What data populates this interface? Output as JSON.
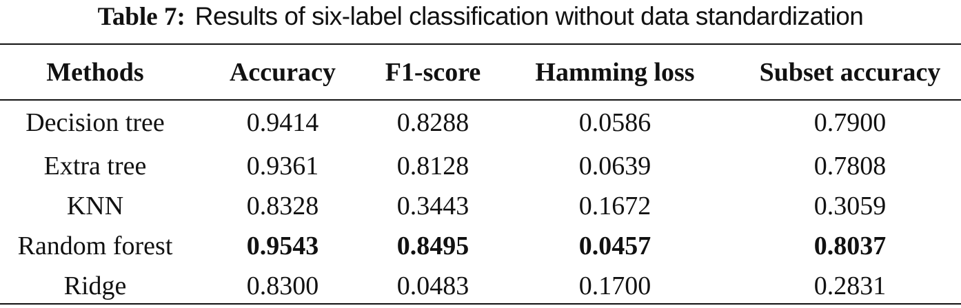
{
  "caption": {
    "label": "Table 7:",
    "text": "Results of six-label classification without data standardization"
  },
  "table": {
    "headers": [
      "Methods",
      "Accuracy",
      "F1-score",
      "Hamming loss",
      "Subset accuracy"
    ],
    "rows": [
      {
        "method": "Decision tree",
        "accuracy": "0.9414",
        "f1": "0.8288",
        "hamming": "0.0586",
        "subset": "0.7900",
        "best": false
      },
      {
        "method": "Extra tree",
        "accuracy": "0.9361",
        "f1": "0.8128",
        "hamming": "0.0639",
        "subset": "0.7808",
        "best": false
      },
      {
        "method": "KNN",
        "accuracy": "0.8328",
        "f1": "0.3443",
        "hamming": "0.1672",
        "subset": "0.3059",
        "best": false
      },
      {
        "method": "Random forest",
        "accuracy": "0.9543",
        "f1": "0.8495",
        "hamming": "0.0457",
        "subset": "0.8037",
        "best": true
      },
      {
        "method": "Ridge",
        "accuracy": "0.8300",
        "f1": "0.0483",
        "hamming": "0.1700",
        "subset": "0.2831",
        "best": false
      }
    ]
  }
}
